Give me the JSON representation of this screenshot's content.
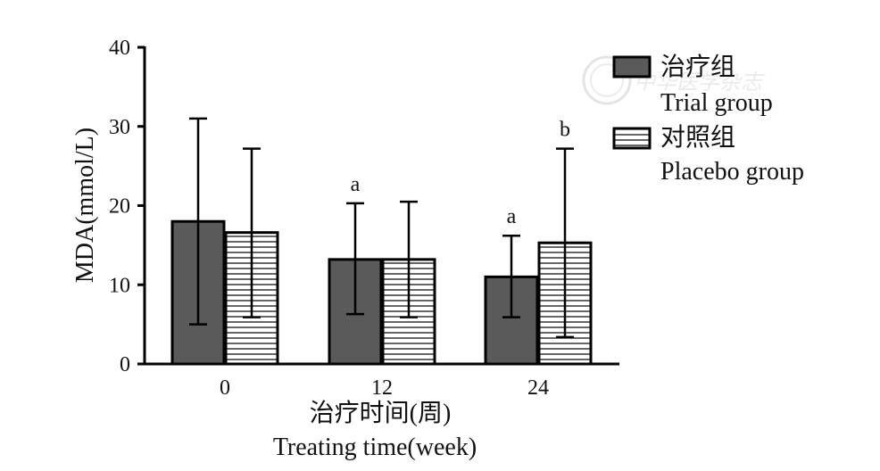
{
  "chart_data": {
    "type": "bar",
    "categories": [
      "0",
      "12",
      "24"
    ],
    "ylabel": "MDA(mmol/L)",
    "xlabel_cn": "治疗时间(周)",
    "xlabel_en": "Treating time(week)",
    "ylim": [
      0,
      40
    ],
    "yticks": [
      "0",
      "10",
      "20",
      "30",
      "40"
    ],
    "series": [
      {
        "name_cn": "治疗组",
        "name_en": "Trial group",
        "values": [
          18.0,
          13.2,
          11.0
        ],
        "err_low": [
          5.0,
          6.3,
          5.9
        ],
        "err_high": [
          31.0,
          20.3,
          16.2
        ],
        "sig": [
          "",
          "a",
          "a"
        ],
        "fill": "dark-gray"
      },
      {
        "name_cn": "对照组",
        "name_en": "Placebo group",
        "values": [
          16.6,
          13.2,
          15.3
        ],
        "err_low": [
          5.9,
          5.9,
          3.4
        ],
        "err_high": [
          27.2,
          20.5,
          27.2
        ],
        "sig": [
          "",
          "",
          "b"
        ],
        "fill": "horizontal-stripes"
      }
    ],
    "legend_position": "top-right"
  },
  "watermark": {
    "text": "中华医学杂志"
  },
  "colors": {
    "trial_fill": "#5a5a5a",
    "stroke": "#000000",
    "stripe": "#000000"
  }
}
